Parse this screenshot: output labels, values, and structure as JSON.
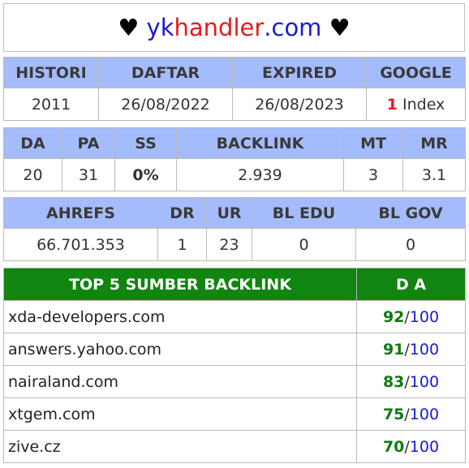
{
  "title": {
    "heart_left": "♥",
    "prefix": "yk",
    "handler": "handler",
    "suffix": ".com",
    "heart_right": "♥"
  },
  "history_table": {
    "headers": [
      "HISTORI",
      "DAFTAR",
      "EXPIRED",
      "GOOGLE"
    ],
    "histori": "2011",
    "daftar": "26/08/2022",
    "expired": "26/08/2023",
    "google_count": "1",
    "google_label": "Index"
  },
  "metrics_table": {
    "headers": [
      "DA",
      "PA",
      "SS",
      "BACKLINK",
      "MT",
      "MR"
    ],
    "da": "20",
    "pa": "31",
    "ss": "0%",
    "backlink": "2.939",
    "mt": "3",
    "mr": "3.1"
  },
  "ahrefs_table": {
    "headers": [
      "AHREFS",
      "DR",
      "UR",
      "BL EDU",
      "BL GOV"
    ],
    "ahrefs": "66.701.353",
    "dr": "1",
    "ur": "23",
    "bl_edu": "0",
    "bl_gov": "0"
  },
  "top_backlinks": {
    "header_source": "TOP 5 SUMBER BACKLINK",
    "header_da": "D A",
    "max": "100",
    "rows": [
      {
        "domain": "xda-developers.com",
        "da": "92"
      },
      {
        "domain": "answers.yahoo.com",
        "da": "91"
      },
      {
        "domain": "nairaland.com",
        "da": "83"
      },
      {
        "domain": "xtgem.com",
        "da": "75"
      },
      {
        "domain": "zive.cz",
        "da": "70"
      }
    ]
  },
  "colors": {
    "header_blue": "#a4bcfc",
    "header_green": "#108510",
    "accent_red": "#e31b1b",
    "accent_blue": "#1a1ad6",
    "da_green": "#0f7a0f",
    "ss_green": "#6bcb1d"
  }
}
